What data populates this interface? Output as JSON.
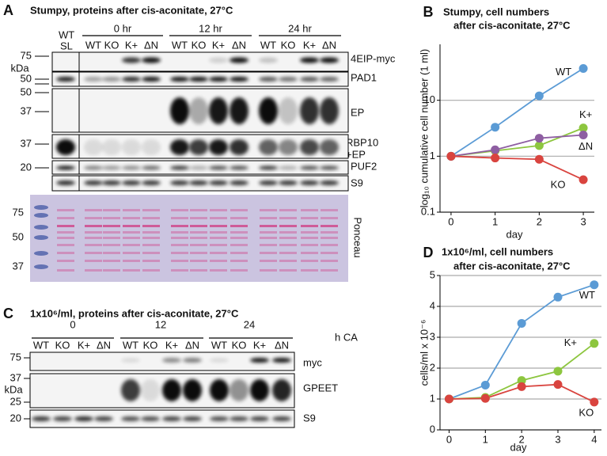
{
  "panel_a": {
    "letter": "A",
    "title": "Stumpy, proteins after cis-aconitate, 27°C",
    "ref_lane": [
      "WT",
      "SL"
    ],
    "timepoints": [
      "0 hr",
      "12 hr",
      "24 hr"
    ],
    "lanes": [
      "WT",
      "KO",
      "K+",
      "ΔN"
    ],
    "markers": [
      "75",
      "kDa",
      "50",
      "50",
      "37",
      "37",
      "20"
    ],
    "blots": [
      "4EIP-myc",
      "PAD1",
      "EP",
      "RBP10",
      "+EP",
      "PUF2",
      "S9"
    ],
    "ponceau_markers": [
      "75",
      "50",
      "37"
    ],
    "ponceau": "Ponceau"
  },
  "panel_c": {
    "letter": "C",
    "title": "1x10⁶/ml, proteins after cis-aconitate, 27°C",
    "timepoints": [
      "0",
      "12",
      "24"
    ],
    "time_unit": "h CA",
    "lanes": [
      "WT",
      "KO",
      "K+",
      "ΔN"
    ],
    "markers": [
      "75",
      "37",
      "kDa",
      "25",
      "20"
    ],
    "blots": [
      "myc",
      "GPEET",
      "S9"
    ]
  },
  "chart_data": [
    {
      "type": "line",
      "panel": "B",
      "title": [
        "Stumpy, cell numbers",
        "after cis-aconitate, 27°C"
      ],
      "xlabel": "day",
      "ylabel": "log₁₀ cumulative cell number (1 ml)",
      "log_scale": true,
      "grid": true,
      "x": [
        0,
        1,
        2,
        3
      ],
      "xlim": [
        -0.25,
        3.25
      ],
      "xticks": [
        0,
        1,
        2,
        3
      ],
      "ylim": [
        0.1,
        100
      ],
      "yticks": [
        0.1,
        1,
        10
      ],
      "series": [
        {
          "name": "WT",
          "color": "#5b9bd5",
          "values": [
            1,
            3.3,
            12,
            37
          ]
        },
        {
          "name": "K+",
          "color": "#8dc63f",
          "values": [
            1,
            1.25,
            1.55,
            3.2
          ]
        },
        {
          "name": "ΔN",
          "color": "#8e5ea2",
          "values": [
            1,
            1.3,
            2.1,
            2.4
          ]
        },
        {
          "name": "KO",
          "color": "#d9443f",
          "values": [
            1,
            0.93,
            0.88,
            0.38
          ]
        }
      ]
    },
    {
      "type": "line",
      "panel": "D",
      "title": [
        "1x10⁶/ml, cell numbers",
        "after cis-aconitate, 27°C"
      ],
      "xlabel": "day",
      "ylabel": "cells/ml x 10⁻⁶",
      "log_scale": false,
      "grid": true,
      "x": [
        0,
        1,
        2,
        3,
        4
      ],
      "xlim": [
        -0.25,
        4.2
      ],
      "xticks": [
        0,
        1,
        2,
        3,
        4
      ],
      "ylim": [
        0,
        5
      ],
      "yticks": [
        0,
        1,
        2,
        3,
        4,
        5
      ],
      "series": [
        {
          "name": "WT",
          "color": "#5b9bd5",
          "values": [
            1,
            1.45,
            3.45,
            4.3,
            4.7
          ]
        },
        {
          "name": "K+",
          "color": "#8dc63f",
          "values": [
            1,
            1.05,
            1.6,
            1.9,
            2.8
          ]
        },
        {
          "name": "KO",
          "color": "#d9443f",
          "values": [
            1,
            1.02,
            1.4,
            1.47,
            0.9
          ]
        }
      ]
    }
  ]
}
